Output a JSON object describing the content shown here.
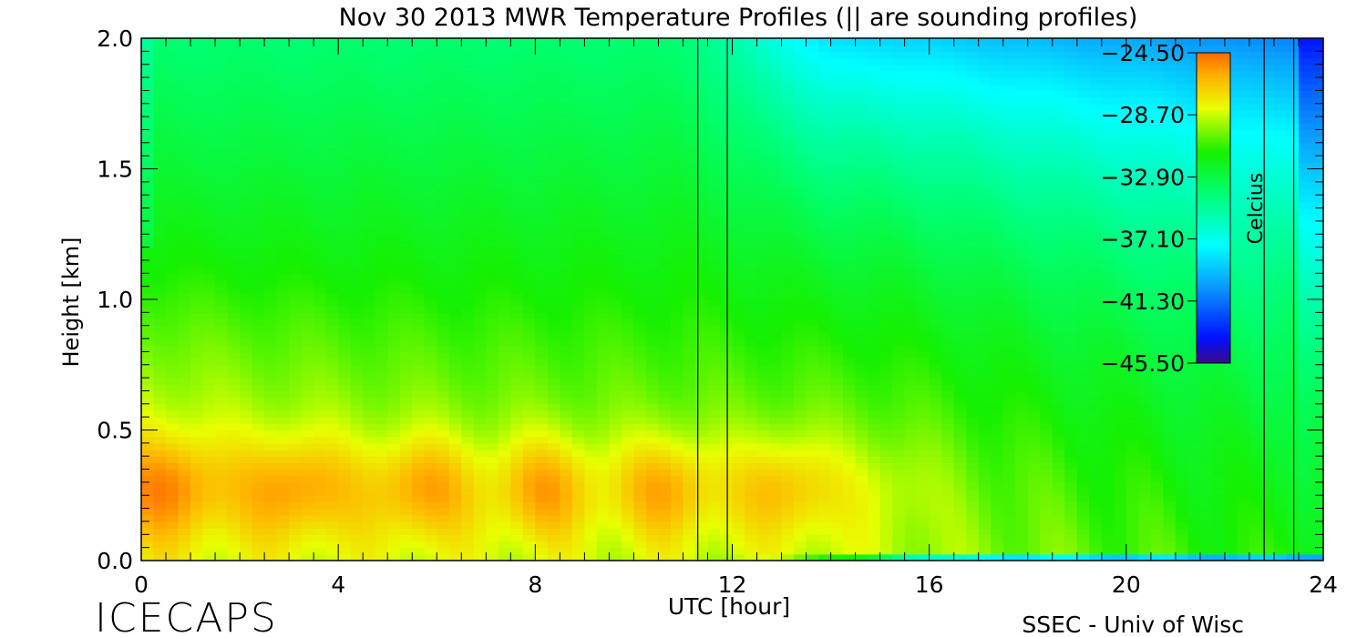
{
  "chart_data": {
    "type": "heatmap",
    "title": "Nov 30 2013 MWR Temperature Profiles (|| are sounding profiles)",
    "xlabel": "UTC [hour]",
    "ylabel": "Height [km]",
    "xlim": [
      0,
      24
    ],
    "ylim": [
      0,
      2
    ],
    "x_ticks": [
      "0",
      "4",
      "8",
      "12",
      "16",
      "20",
      "24"
    ],
    "y_ticks": [
      "0.0",
      "0.5",
      "1.0",
      "1.5",
      "2.0"
    ],
    "colorbar": {
      "label": "Celcius",
      "ticks": [
        "-24.50",
        "-28.70",
        "-32.90",
        "-37.10",
        "-41.30",
        "-45.50"
      ],
      "range": [
        -45.5,
        -24.5
      ]
    },
    "sounding_profiles_utc": [
      11.3,
      11.9,
      22.8,
      23.4
    ],
    "field_description": "Warmest (about -25 C) in 0.1-0.5 km layer from 0-15 UTC; about -30 to -32 C elsewhere; coldest (about -38 to -40 C) near 2 km after 12 UTC and right edge"
  },
  "footer": {
    "logo": "ICECAPS",
    "credit": "SSEC - Univ of Wisc"
  }
}
